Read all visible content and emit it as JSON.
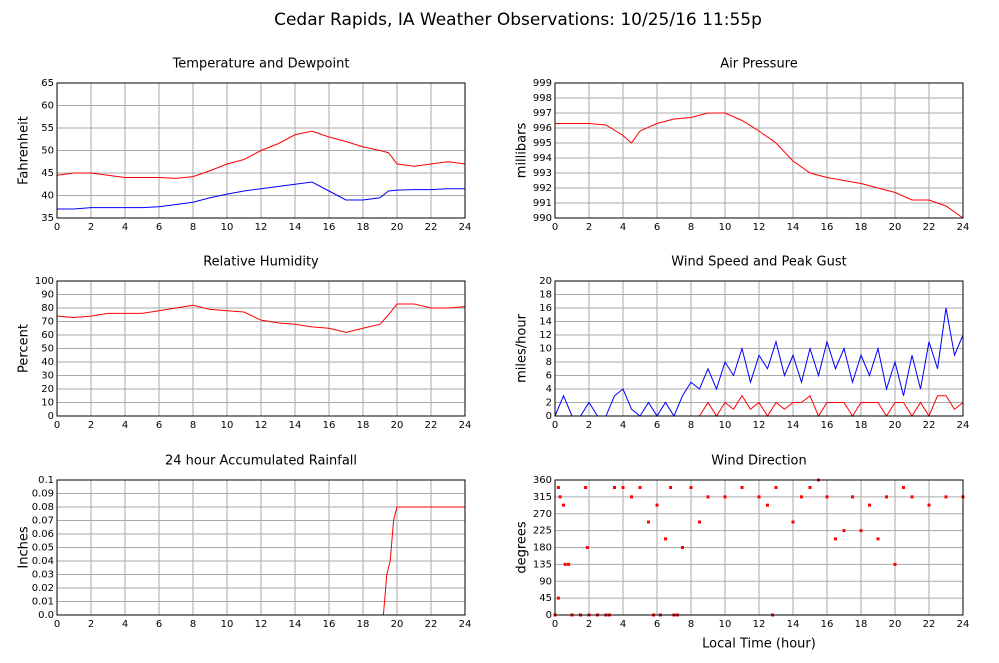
{
  "title": "Cedar Rapids, IA Weather Observations: 10/25/16 11:55p",
  "chart_data": [
    {
      "type": "line",
      "title": "Temperature and Dewpoint",
      "ylabel": "Fahrenheit",
      "x": [
        0,
        1,
        2,
        3,
        4,
        5,
        6,
        7,
        8,
        9,
        10,
        11,
        12,
        13,
        14,
        15,
        16,
        17,
        18,
        19,
        19.5,
        20,
        21,
        22,
        23,
        24
      ],
      "series": [
        {
          "color": "#ff0000",
          "values": [
            44.5,
            45,
            45,
            44.5,
            44,
            44,
            44,
            43.8,
            44.2,
            45.5,
            47,
            48,
            50,
            51.5,
            53.5,
            54.3,
            53,
            52,
            50.8,
            50,
            49.5,
            47,
            46.5,
            47,
            47.5,
            47
          ]
        },
        {
          "color": "#0000ff",
          "values": [
            37,
            37,
            37.3,
            37.3,
            37.3,
            37.3,
            37.5,
            38,
            38.5,
            39.5,
            40.3,
            41,
            41.5,
            42,
            42.5,
            43,
            41,
            39,
            39,
            39.5,
            41,
            41.2,
            41.3,
            41.3,
            41.5,
            41.5
          ]
        }
      ],
      "xlim": [
        0,
        24
      ],
      "xticks": [
        0,
        2,
        4,
        6,
        8,
        10,
        12,
        14,
        16,
        18,
        20,
        22,
        24
      ],
      "ylim": [
        35,
        65
      ],
      "yticks": [
        35,
        40,
        45,
        50,
        55,
        60,
        65
      ],
      "grid": true
    },
    {
      "type": "line",
      "title": "Air Pressure",
      "ylabel": "millibars",
      "x": [
        0,
        1,
        2,
        3,
        4,
        4.5,
        5,
        6,
        7,
        8,
        9,
        10,
        11,
        12,
        13,
        14,
        15,
        16,
        17,
        18,
        19,
        20,
        21,
        22,
        23,
        24
      ],
      "series": [
        {
          "color": "#ff0000",
          "values": [
            996.3,
            996.3,
            996.3,
            996.2,
            995.5,
            995,
            995.8,
            996.3,
            996.6,
            996.7,
            997,
            997,
            996.5,
            995.8,
            995,
            993.8,
            993,
            992.7,
            992.5,
            992.3,
            992,
            991.7,
            991.2,
            991.2,
            990.8,
            990
          ]
        }
      ],
      "xlim": [
        0,
        24
      ],
      "xticks": [
        0,
        2,
        4,
        6,
        8,
        10,
        12,
        14,
        16,
        18,
        20,
        22,
        24
      ],
      "ylim": [
        990,
        999
      ],
      "yticks": [
        990,
        991,
        992,
        993,
        994,
        995,
        996,
        997,
        998,
        999
      ],
      "grid": true
    },
    {
      "type": "line",
      "title": "Relative Humidity",
      "ylabel": "Percent",
      "x": [
        0,
        1,
        2,
        3,
        4,
        5,
        6,
        7,
        8,
        9,
        10,
        11,
        12,
        13,
        14,
        15,
        16,
        17,
        18,
        19,
        19.5,
        20,
        21,
        22,
        23,
        24
      ],
      "series": [
        {
          "color": "#ff0000",
          "values": [
            74,
            73,
            74,
            76,
            76,
            76,
            78,
            80,
            82,
            79,
            78,
            77,
            71,
            69,
            68,
            66,
            65,
            62,
            65,
            68,
            75,
            83,
            83,
            80,
            80,
            81
          ]
        }
      ],
      "xlim": [
        0,
        24
      ],
      "xticks": [
        0,
        2,
        4,
        6,
        8,
        10,
        12,
        14,
        16,
        18,
        20,
        22,
        24
      ],
      "ylim": [
        0,
        100
      ],
      "yticks": [
        0,
        10,
        20,
        30,
        40,
        50,
        60,
        70,
        80,
        90,
        100
      ],
      "grid": true
    },
    {
      "type": "line",
      "title": "Wind Speed and Peak Gust",
      "ylabel": "miles/hour",
      "x": [
        0,
        0.5,
        1,
        1.5,
        2,
        2.5,
        3,
        3.5,
        4,
        4.5,
        5,
        5.5,
        6,
        6.5,
        7,
        7.5,
        8,
        8.5,
        9,
        9.5,
        10,
        10.5,
        11,
        11.5,
        12,
        12.5,
        13,
        13.5,
        14,
        14.5,
        15,
        15.5,
        16,
        16.5,
        17,
        17.5,
        18,
        18.5,
        19,
        19.5,
        20,
        20.5,
        21,
        21.5,
        22,
        22.5,
        23,
        23.5,
        24
      ],
      "series": [
        {
          "color": "#0000ff",
          "values": [
            0,
            3,
            0,
            0,
            2,
            0,
            0,
            3,
            4,
            1,
            0,
            2,
            0,
            2,
            0,
            3,
            5,
            4,
            7,
            4,
            8,
            6,
            10,
            5,
            9,
            7,
            11,
            6,
            9,
            5,
            10,
            6,
            11,
            7,
            10,
            5,
            9,
            6,
            10,
            4,
            8,
            3,
            9,
            4,
            11,
            7,
            16,
            9,
            12
          ]
        },
        {
          "color": "#ff0000",
          "values": [
            0,
            0,
            0,
            0,
            0,
            0,
            0,
            0,
            0,
            0,
            0,
            0,
            0,
            0,
            0,
            0,
            0,
            0,
            2,
            0,
            2,
            1,
            3,
            1,
            2,
            0,
            2,
            1,
            2,
            2,
            3,
            0,
            2,
            2,
            2,
            0,
            2,
            2,
            2,
            0,
            2,
            2,
            0,
            2,
            0,
            3,
            3,
            1,
            2
          ]
        }
      ],
      "xlim": [
        0,
        24
      ],
      "xticks": [
        0,
        2,
        4,
        6,
        8,
        10,
        12,
        14,
        16,
        18,
        20,
        22,
        24
      ],
      "ylim": [
        0,
        20
      ],
      "yticks": [
        0,
        2,
        4,
        6,
        8,
        10,
        12,
        14,
        16,
        18,
        20
      ],
      "grid": true
    },
    {
      "type": "line",
      "title": "24 hour Accumulated Rainfall",
      "ylabel": "Inches",
      "x": [
        0,
        19.2,
        19.4,
        19.6,
        19.8,
        20,
        24
      ],
      "series": [
        {
          "color": "#ff0000",
          "values": [
            0,
            0,
            0.03,
            0.04,
            0.07,
            0.08,
            0.08
          ]
        }
      ],
      "xlim": [
        0,
        24
      ],
      "xticks": [
        0,
        2,
        4,
        6,
        8,
        10,
        12,
        14,
        16,
        18,
        20,
        22,
        24
      ],
      "ylim": [
        0,
        0.1
      ],
      "yticks": [
        {
          "value": 0,
          "label": "0.0"
        },
        0.01,
        0.02,
        0.03,
        0.04,
        0.05,
        0.06,
        0.07,
        0.08,
        0.09,
        0.1
      ],
      "grid": true
    },
    {
      "type": "scatter",
      "title": "Wind Direction",
      "ylabel": "degrees",
      "xlabel": "Local Time (hour)",
      "x": [
        0,
        0.2,
        0.2,
        0.3,
        0.5,
        0.6,
        0.8,
        1,
        1.5,
        1.8,
        1.9,
        2,
        2.5,
        3,
        3.2,
        3.5,
        4,
        4.5,
        5,
        5.5,
        5.8,
        6,
        6.2,
        6.5,
        6.8,
        7,
        7.2,
        7.5,
        8,
        8.5,
        9,
        10,
        11,
        12,
        12.5,
        12.8,
        13,
        14,
        14.5,
        15,
        15.5,
        16,
        16.5,
        17,
        17.5,
        18,
        18.5,
        19,
        19.5,
        20,
        20.5,
        21,
        22,
        23,
        24
      ],
      "series": [
        {
          "color": "#ff0000",
          "values": [
            0,
            340,
            45,
            315,
            293,
            135,
            135,
            0,
            0,
            340,
            180,
            0,
            0,
            0,
            0,
            340,
            340,
            315,
            340,
            248,
            0,
            293,
            0,
            203,
            340,
            0,
            0,
            180,
            340,
            248,
            315,
            315,
            340,
            315,
            293,
            0,
            340,
            248,
            315,
            340,
            360,
            315,
            203,
            225,
            315,
            225,
            293,
            203,
            315,
            135,
            340,
            315,
            293,
            315,
            315
          ]
        }
      ],
      "xlim": [
        0,
        24
      ],
      "xticks": [
        0,
        2,
        4,
        6,
        8,
        10,
        12,
        14,
        16,
        18,
        20,
        22,
        24
      ],
      "ylim": [
        0,
        360
      ],
      "yticks": [
        0,
        45,
        90,
        135,
        180,
        225,
        270,
        315,
        360
      ],
      "grid": true
    }
  ]
}
